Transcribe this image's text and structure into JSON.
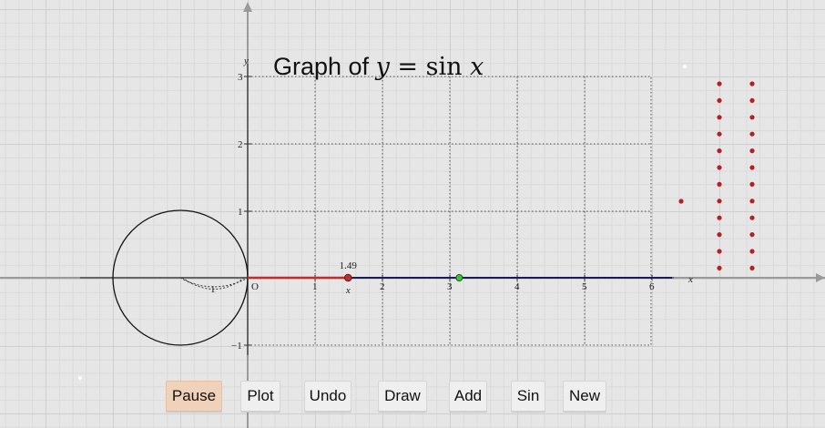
{
  "title": {
    "prefix": "Graph of ",
    "lhs": "y",
    "equals": " = sin ",
    "rhs": "x"
  },
  "axes": {
    "x_label": "x",
    "y_label": "y",
    "origin_label": "O",
    "x_ticks": [
      "1",
      "2",
      "3",
      "4",
      "5",
      "6"
    ],
    "y_ticks": [
      "3",
      "2",
      "1",
      "−1"
    ]
  },
  "unit_circle": {
    "radius_label": "1"
  },
  "slider": {
    "value_label": "1.49",
    "sub_label": "x",
    "value": 1.49,
    "green_point_value": 3.14,
    "end_value": 6.28
  },
  "colors": {
    "accent_red": "#b22222",
    "traced_line": "#c0302b",
    "line_navy": "#1a1a5e",
    "green_point": "#3bc43b"
  },
  "side_dots": {
    "single_count": 1,
    "column_counts": [
      12,
      12
    ]
  },
  "buttons": [
    {
      "label": "Pause",
      "active": true
    },
    {
      "label": "Plot",
      "active": false
    },
    {
      "label": "Undo",
      "active": false
    },
    {
      "label": "Draw",
      "active": false
    },
    {
      "label": "Add",
      "active": false
    },
    {
      "label": "Sin",
      "active": false
    },
    {
      "label": "New",
      "active": false
    }
  ]
}
